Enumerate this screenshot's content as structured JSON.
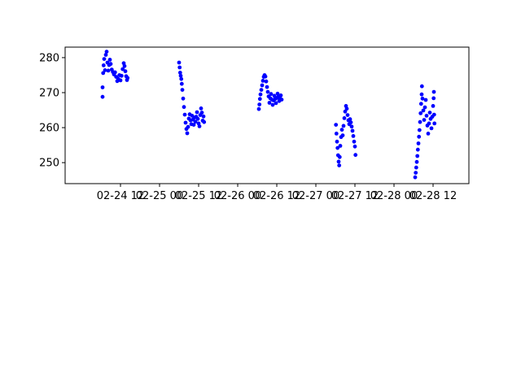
{
  "chart_data": {
    "type": "scatter",
    "title": "",
    "xlabel": "",
    "ylabel": "",
    "grid": false,
    "marker_color": "#0000ff",
    "x_ticks": [
      "02-24 12",
      "02-25 00",
      "02-25 12",
      "02-26 00",
      "02-26 12",
      "02-27 00",
      "02-27 12",
      "02-28 00",
      "02-28 12"
    ],
    "y_ticks": [
      250,
      260,
      270,
      280
    ],
    "xlim": [
      "2024-02-23 19:00",
      "2024-02-28 23:00"
    ],
    "ylim": [
      244,
      283
    ],
    "series": [
      {
        "name": "",
        "points": [
          [
            "2024-02-24 06:30",
            268.8
          ],
          [
            "2024-02-24 06:30",
            271.5
          ],
          [
            "2024-02-24 06:40",
            275.6
          ],
          [
            "2024-02-24 06:50",
            277.8
          ],
          [
            "2024-02-24 07:00",
            279.6
          ],
          [
            "2024-02-24 07:15",
            276.4
          ],
          [
            "2024-02-24 07:30",
            280.8
          ],
          [
            "2024-02-24 07:45",
            281.7
          ],
          [
            "2024-02-24 08:00",
            278.6
          ],
          [
            "2024-02-24 08:15",
            276.3
          ],
          [
            "2024-02-24 08:30",
            277.9
          ],
          [
            "2024-02-24 08:45",
            279.4
          ],
          [
            "2024-02-24 09:00",
            278.2
          ],
          [
            "2024-02-24 09:20",
            276.6
          ],
          [
            "2024-02-24 09:40",
            275.9
          ],
          [
            "2024-02-24 10:00",
            275.2
          ],
          [
            "2024-02-24 10:20",
            275.8
          ],
          [
            "2024-02-24 10:40",
            274.5
          ],
          [
            "2024-02-24 11:00",
            273.3
          ],
          [
            "2024-02-24 11:20",
            273.9
          ],
          [
            "2024-02-24 11:40",
            275.0
          ],
          [
            "2024-02-24 12:00",
            273.5
          ],
          [
            "2024-02-24 12:20",
            274.8
          ],
          [
            "2024-02-24 12:40",
            276.7
          ],
          [
            "2024-02-24 13:00",
            278.4
          ],
          [
            "2024-02-24 13:15",
            277.6
          ],
          [
            "2024-02-24 13:30",
            276.1
          ],
          [
            "2024-02-24 13:45",
            274.7
          ],
          [
            "2024-02-24 14:00",
            273.6
          ],
          [
            "2024-02-24 14:10",
            274.2
          ],
          [
            "2024-02-25 06:00",
            278.6
          ],
          [
            "2024-02-25 06:10",
            277.2
          ],
          [
            "2024-02-25 06:20",
            275.7
          ],
          [
            "2024-02-25 06:30",
            274.8
          ],
          [
            "2024-02-25 06:40",
            273.9
          ],
          [
            "2024-02-25 06:50",
            272.5
          ],
          [
            "2024-02-25 07:00",
            270.8
          ],
          [
            "2024-02-25 07:15",
            268.3
          ],
          [
            "2024-02-25 07:30",
            265.9
          ],
          [
            "2024-02-25 07:45",
            263.7
          ],
          [
            "2024-02-25 08:00",
            261.4
          ],
          [
            "2024-02-25 08:15",
            259.6
          ],
          [
            "2024-02-25 08:30",
            258.4
          ],
          [
            "2024-02-25 08:45",
            260.2
          ],
          [
            "2024-02-25 09:00",
            262.6
          ],
          [
            "2024-02-25 09:15",
            263.8
          ],
          [
            "2024-02-25 09:30",
            262.1
          ],
          [
            "2024-02-25 09:45",
            261.0
          ],
          [
            "2024-02-25 10:00",
            263.4
          ],
          [
            "2024-02-25 10:15",
            262.3
          ],
          [
            "2024-02-25 10:30",
            260.8
          ],
          [
            "2024-02-25 10:45",
            262.9
          ],
          [
            "2024-02-25 11:00",
            261.7
          ],
          [
            "2024-02-25 11:15",
            263.1
          ],
          [
            "2024-02-25 11:30",
            264.4
          ],
          [
            "2024-02-25 11:45",
            262.5
          ],
          [
            "2024-02-25 12:00",
            261.2
          ],
          [
            "2024-02-25 12:15",
            260.4
          ],
          [
            "2024-02-25 12:30",
            263.6
          ],
          [
            "2024-02-25 12:45",
            265.5
          ],
          [
            "2024-02-25 13:00",
            264.3
          ],
          [
            "2024-02-25 13:15",
            262.0
          ],
          [
            "2024-02-25 13:30",
            263.2
          ],
          [
            "2024-02-25 13:40",
            261.6
          ],
          [
            "2024-02-26 06:30",
            265.3
          ],
          [
            "2024-02-26 06:40",
            266.6
          ],
          [
            "2024-02-26 06:50",
            268.2
          ],
          [
            "2024-02-26 07:00",
            269.5
          ],
          [
            "2024-02-26 07:15",
            270.8
          ],
          [
            "2024-02-26 07:30",
            272.1
          ],
          [
            "2024-02-26 07:45",
            273.4
          ],
          [
            "2024-02-26 08:00",
            274.5
          ],
          [
            "2024-02-26 08:15",
            275.0
          ],
          [
            "2024-02-26 08:30",
            274.6
          ],
          [
            "2024-02-26 08:45",
            273.2
          ],
          [
            "2024-02-26 09:00",
            271.6
          ],
          [
            "2024-02-26 09:15",
            270.2
          ],
          [
            "2024-02-26 09:30",
            268.9
          ],
          [
            "2024-02-26 09:45",
            267.1
          ],
          [
            "2024-02-26 10:00",
            268.4
          ],
          [
            "2024-02-26 10:15",
            269.6
          ],
          [
            "2024-02-26 10:30",
            268.0
          ],
          [
            "2024-02-26 10:45",
            266.5
          ],
          [
            "2024-02-26 11:00",
            267.8
          ],
          [
            "2024-02-26 11:15",
            269.1
          ],
          [
            "2024-02-26 11:30",
            268.2
          ],
          [
            "2024-02-26 11:45",
            267.0
          ],
          [
            "2024-02-26 12:00",
            268.5
          ],
          [
            "2024-02-26 12:15",
            269.7
          ],
          [
            "2024-02-26 12:30",
            268.8
          ],
          [
            "2024-02-26 12:45",
            267.6
          ],
          [
            "2024-02-26 13:00",
            268.3
          ],
          [
            "2024-02-26 13:15",
            269.2
          ],
          [
            "2024-02-26 13:30",
            268.0
          ],
          [
            "2024-02-27 06:10",
            260.8
          ],
          [
            "2024-02-27 06:20",
            258.3
          ],
          [
            "2024-02-27 06:30",
            256.0
          ],
          [
            "2024-02-27 06:40",
            254.2
          ],
          [
            "2024-02-27 06:50",
            252.1
          ],
          [
            "2024-02-27 07:00",
            250.3
          ],
          [
            "2024-02-27 07:10",
            249.2
          ],
          [
            "2024-02-27 07:20",
            251.6
          ],
          [
            "2024-02-27 07:30",
            254.8
          ],
          [
            "2024-02-27 07:45",
            257.3
          ],
          [
            "2024-02-27 08:00",
            259.4
          ],
          [
            "2024-02-27 08:15",
            257.8
          ],
          [
            "2024-02-27 08:30",
            260.5
          ],
          [
            "2024-02-27 08:45",
            262.7
          ],
          [
            "2024-02-27 09:00",
            264.6
          ],
          [
            "2024-02-27 09:15",
            266.2
          ],
          [
            "2024-02-27 09:30",
            265.4
          ],
          [
            "2024-02-27 09:45",
            263.6
          ],
          [
            "2024-02-27 10:00",
            262.1
          ],
          [
            "2024-02-27 10:15",
            261.0
          ],
          [
            "2024-02-27 10:30",
            262.4
          ],
          [
            "2024-02-27 10:45",
            261.5
          ],
          [
            "2024-02-27 11:00",
            260.3
          ],
          [
            "2024-02-27 11:15",
            259.1
          ],
          [
            "2024-02-27 11:30",
            257.6
          ],
          [
            "2024-02-27 11:45",
            256.0
          ],
          [
            "2024-02-27 12:00",
            254.6
          ],
          [
            "2024-02-27 12:10",
            252.2
          ],
          [
            "2024-02-28 06:30",
            245.8
          ],
          [
            "2024-02-28 06:40",
            247.1
          ],
          [
            "2024-02-28 06:50",
            248.6
          ],
          [
            "2024-02-28 07:00",
            250.2
          ],
          [
            "2024-02-28 07:10",
            251.9
          ],
          [
            "2024-02-28 07:20",
            253.7
          ],
          [
            "2024-02-28 07:30",
            255.5
          ],
          [
            "2024-02-28 07:40",
            257.4
          ],
          [
            "2024-02-28 07:50",
            259.3
          ],
          [
            "2024-02-28 08:00",
            261.6
          ],
          [
            "2024-02-28 08:10",
            264.1
          ],
          [
            "2024-02-28 08:20",
            266.8
          ],
          [
            "2024-02-28 08:30",
            269.5
          ],
          [
            "2024-02-28 08:35",
            271.8
          ],
          [
            "2024-02-28 08:45",
            268.3
          ],
          [
            "2024-02-28 09:00",
            264.9
          ],
          [
            "2024-02-28 09:15",
            262.2
          ],
          [
            "2024-02-28 09:30",
            265.8
          ],
          [
            "2024-02-28 09:45",
            267.9
          ],
          [
            "2024-02-28 10:00",
            263.4
          ],
          [
            "2024-02-28 10:15",
            260.6
          ],
          [
            "2024-02-28 10:30",
            258.3
          ],
          [
            "2024-02-28 10:45",
            261.2
          ],
          [
            "2024-02-28 11:00",
            264.3
          ],
          [
            "2024-02-28 11:15",
            262.5
          ],
          [
            "2024-02-28 11:30",
            259.8
          ],
          [
            "2024-02-28 11:45",
            263.1
          ],
          [
            "2024-02-28 12:00",
            266.2
          ],
          [
            "2024-02-28 12:10",
            268.4
          ],
          [
            "2024-02-28 12:15",
            270.2
          ],
          [
            "2024-02-28 12:20",
            263.7
          ],
          [
            "2024-02-28 12:25",
            261.2
          ]
        ]
      }
    ]
  }
}
